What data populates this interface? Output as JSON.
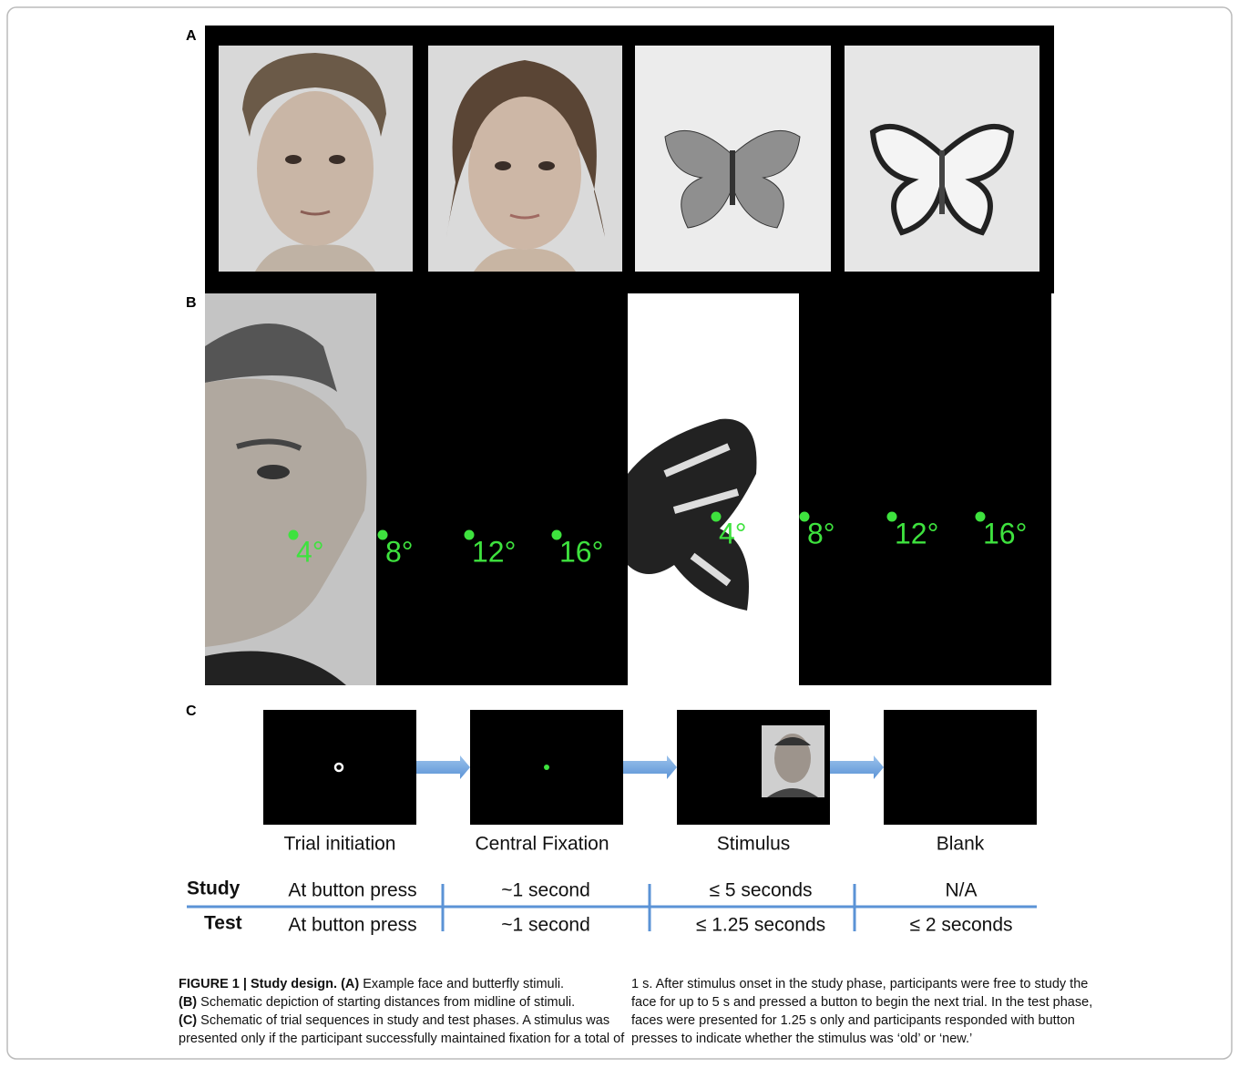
{
  "panels": {
    "a": {
      "label": "A"
    },
    "b": {
      "label": "B",
      "face_distances": [
        "4°",
        "8°",
        "12°",
        "16°"
      ],
      "butterfly_distances": [
        "4°",
        "8°",
        "12°",
        "16°"
      ]
    },
    "c": {
      "label": "C",
      "steps": [
        "Trial initiation",
        "Central Fixation",
        "Stimulus",
        "Blank"
      ],
      "table": {
        "rows": [
          {
            "phase": "Study",
            "cells": [
              "At button press",
              "~1 second",
              "≤ 5 seconds",
              "N/A"
            ]
          },
          {
            "phase": "Test",
            "cells": [
              "At button press",
              "~1 second",
              "≤ 1.25 seconds",
              "≤ 2 seconds"
            ]
          }
        ]
      }
    }
  },
  "caption": {
    "left": [
      {
        "bold": "FIGURE 1 | Study design. (A)",
        "text": " Example face and butterfly stimuli."
      },
      {
        "bold": "(B)",
        "text": " Schematic depiction of starting distances from midline of stimuli."
      },
      {
        "bold": "(C)",
        "text": " Schematic of trial sequences in study and test phases. A stimulus was"
      },
      {
        "text": "presented only if the participant successfully maintained fixation for a total of"
      }
    ],
    "right": [
      {
        "text": "1 s. After stimulus onset in the study phase, participants were free to study the"
      },
      {
        "text": "face for up to 5 s and pressed a button to begin the next trial. In the test phase,"
      },
      {
        "text": "faces were presented for 1.25 s only and participants responded with button"
      },
      {
        "text": "presses to indicate whether the stimulus was ‘old’ or ‘new.’"
      }
    ]
  }
}
